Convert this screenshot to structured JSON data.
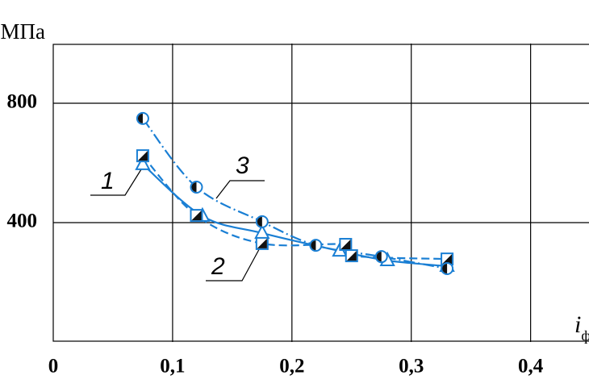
{
  "chart_data": {
    "type": "scatter",
    "y_label": "МПа",
    "x_label": "i",
    "x_label_sub": "ф",
    "xlim": [
      0,
      0.43
    ],
    "ylim": [
      0,
      1000
    ],
    "xticks": [
      0,
      {
        "value": 0.1,
        "label": "0,1"
      },
      {
        "value": 0.2,
        "label": "0,2"
      },
      {
        "value": 0.3,
        "label": "0,3"
      },
      {
        "value": 0.4,
        "label": "0,4"
      }
    ],
    "yticks": [
      400,
      800
    ],
    "grid": true,
    "series": [
      {
        "name": "1",
        "marker": "triangle",
        "line": "solid",
        "color": "#1a7fd4",
        "x": [
          0.075,
          0.125,
          0.175,
          0.24,
          0.28,
          0.33
        ],
        "values": [
          595,
          422,
          365,
          305,
          273,
          254
        ]
      },
      {
        "name": "2",
        "marker": "square",
        "line": "dashed",
        "color": "#1a7fd4",
        "x": [
          0.075,
          0.12,
          0.175,
          0.245,
          0.25,
          0.33
        ],
        "values": [
          624,
          424,
          330,
          327,
          289,
          278
        ]
      },
      {
        "name": "3",
        "marker": "circle",
        "line": "dashdot",
        "color": "#1a7fd4",
        "x": [
          0.075,
          0.12,
          0.175,
          0.22,
          0.275,
          0.33
        ],
        "values": [
          749,
          519,
          403,
          324,
          286,
          246
        ]
      }
    ]
  }
}
